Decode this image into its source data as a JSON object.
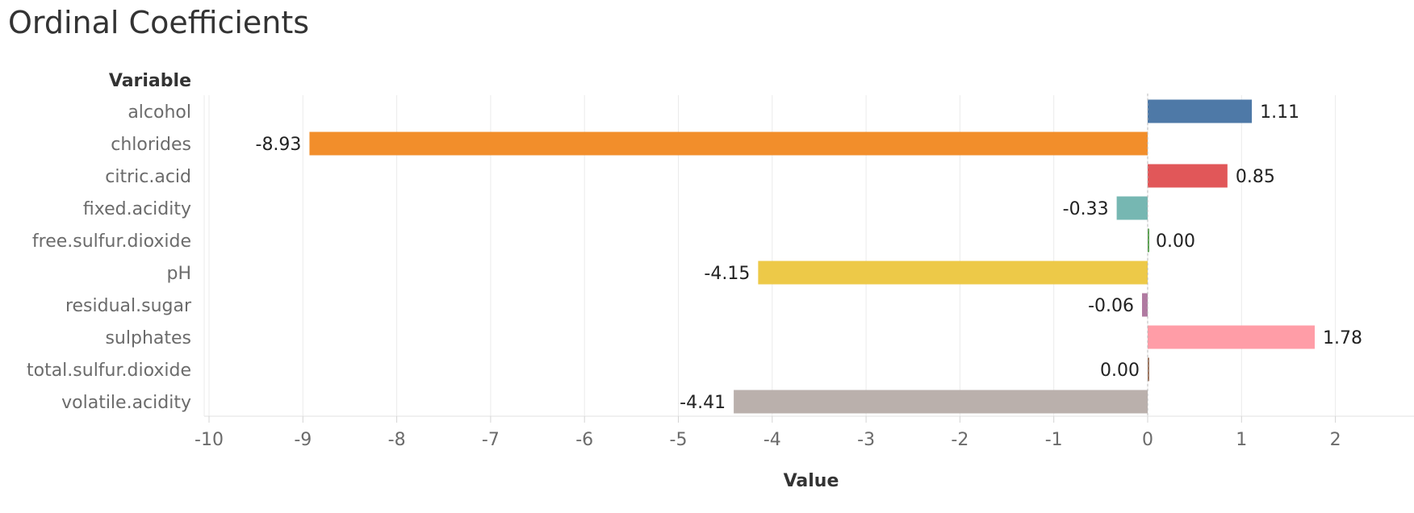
{
  "chart_data": {
    "type": "bar",
    "orientation": "horizontal",
    "title": "Ordinal Coefficients",
    "ylabel": "Variable",
    "xlabel": "Value",
    "xlim": [
      -10.4,
      2.8
    ],
    "xticks": [
      -10,
      -9,
      -8,
      -7,
      -6,
      -5,
      -4,
      -3,
      -2,
      -1,
      0,
      1,
      2
    ],
    "grid": true,
    "categories": [
      "alcohol",
      "chlorides",
      "citric.acid",
      "fixed.acidity",
      "free.sulfur.dioxide",
      "pH",
      "residual.sugar",
      "sulphates",
      "total.sulfur.dioxide",
      "volatile.acidity"
    ],
    "values": [
      1.11,
      -8.93,
      0.85,
      -0.33,
      0.0,
      -4.15,
      -0.06,
      1.78,
      0.0,
      -4.41
    ],
    "value_labels": [
      "1.11",
      "-8.93",
      "0.85",
      "-0.33",
      "0.00",
      "-4.15",
      "-0.06",
      "1.78",
      "0.00",
      "-4.41"
    ],
    "colors": [
      "#4e79a7",
      "#f28e2b",
      "#e15759",
      "#76b7b2",
      "#59a14f",
      "#edc948",
      "#b07aa1",
      "#ff9da7",
      "#9c755f",
      "#bab0ac"
    ]
  }
}
